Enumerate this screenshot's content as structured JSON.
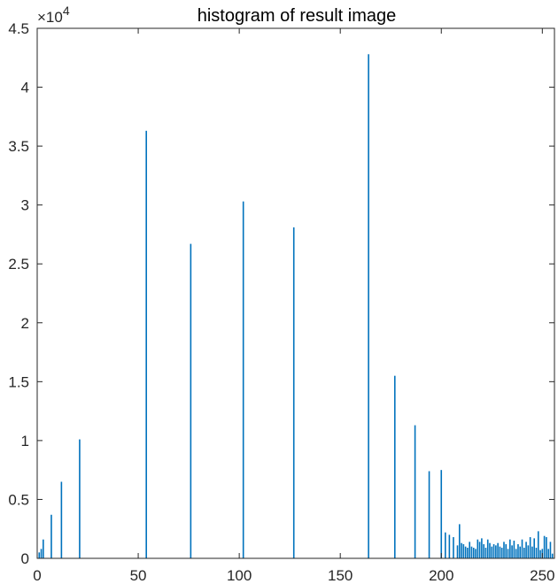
{
  "chart_data": {
    "type": "bar",
    "title": "histogram of result image",
    "xlabel": "",
    "ylabel": "",
    "xlim": [
      0,
      256
    ],
    "ylim": [
      0,
      45000
    ],
    "x_ticks": [
      0,
      50,
      100,
      150,
      200,
      250
    ],
    "y_ticks": [
      0,
      5000,
      10000,
      15000,
      20000,
      25000,
      30000,
      35000,
      40000,
      45000
    ],
    "y_tick_labels": [
      "0",
      "0.5",
      "1",
      "1.5",
      "2",
      "2.5",
      "3",
      "3.5",
      "4",
      "4.5"
    ],
    "y_exponent_base": "×10",
    "y_exponent_power": "4",
    "grid": false,
    "bar_color": "#0072BD",
    "axis_color": "#262626",
    "x": [
      1,
      2,
      3,
      7,
      12,
      21,
      54,
      76,
      102,
      127,
      164,
      177,
      187,
      194,
      200,
      202,
      204,
      206,
      208,
      209,
      210,
      211,
      212,
      213,
      214,
      215,
      216,
      217,
      218,
      219,
      220,
      221,
      222,
      223,
      224,
      225,
      226,
      227,
      228,
      229,
      230,
      231,
      232,
      233,
      234,
      235,
      236,
      237,
      238,
      239,
      240,
      241,
      242,
      243,
      244,
      245,
      246,
      247,
      248,
      249,
      250,
      251,
      252,
      253,
      254,
      255
    ],
    "values": [
      500,
      800,
      1600,
      3700,
      6500,
      10100,
      36300,
      26700,
      30300,
      28100,
      42800,
      15500,
      11300,
      7400,
      7500,
      2200,
      2000,
      1800,
      1100,
      2900,
      1300,
      1200,
      1000,
      900,
      1400,
      1000,
      900,
      800,
      1600,
      1400,
      1700,
      1200,
      900,
      1600,
      1300,
      1000,
      1200,
      1100,
      1300,
      1000,
      900,
      1400,
      1200,
      800,
      1600,
      1100,
      1500,
      800,
      1200,
      1000,
      1600,
      900,
      1400,
      1100,
      1800,
      1000,
      1700,
      900,
      2300,
      700,
      800,
      1900,
      1800,
      800,
      1400,
      400
    ]
  }
}
